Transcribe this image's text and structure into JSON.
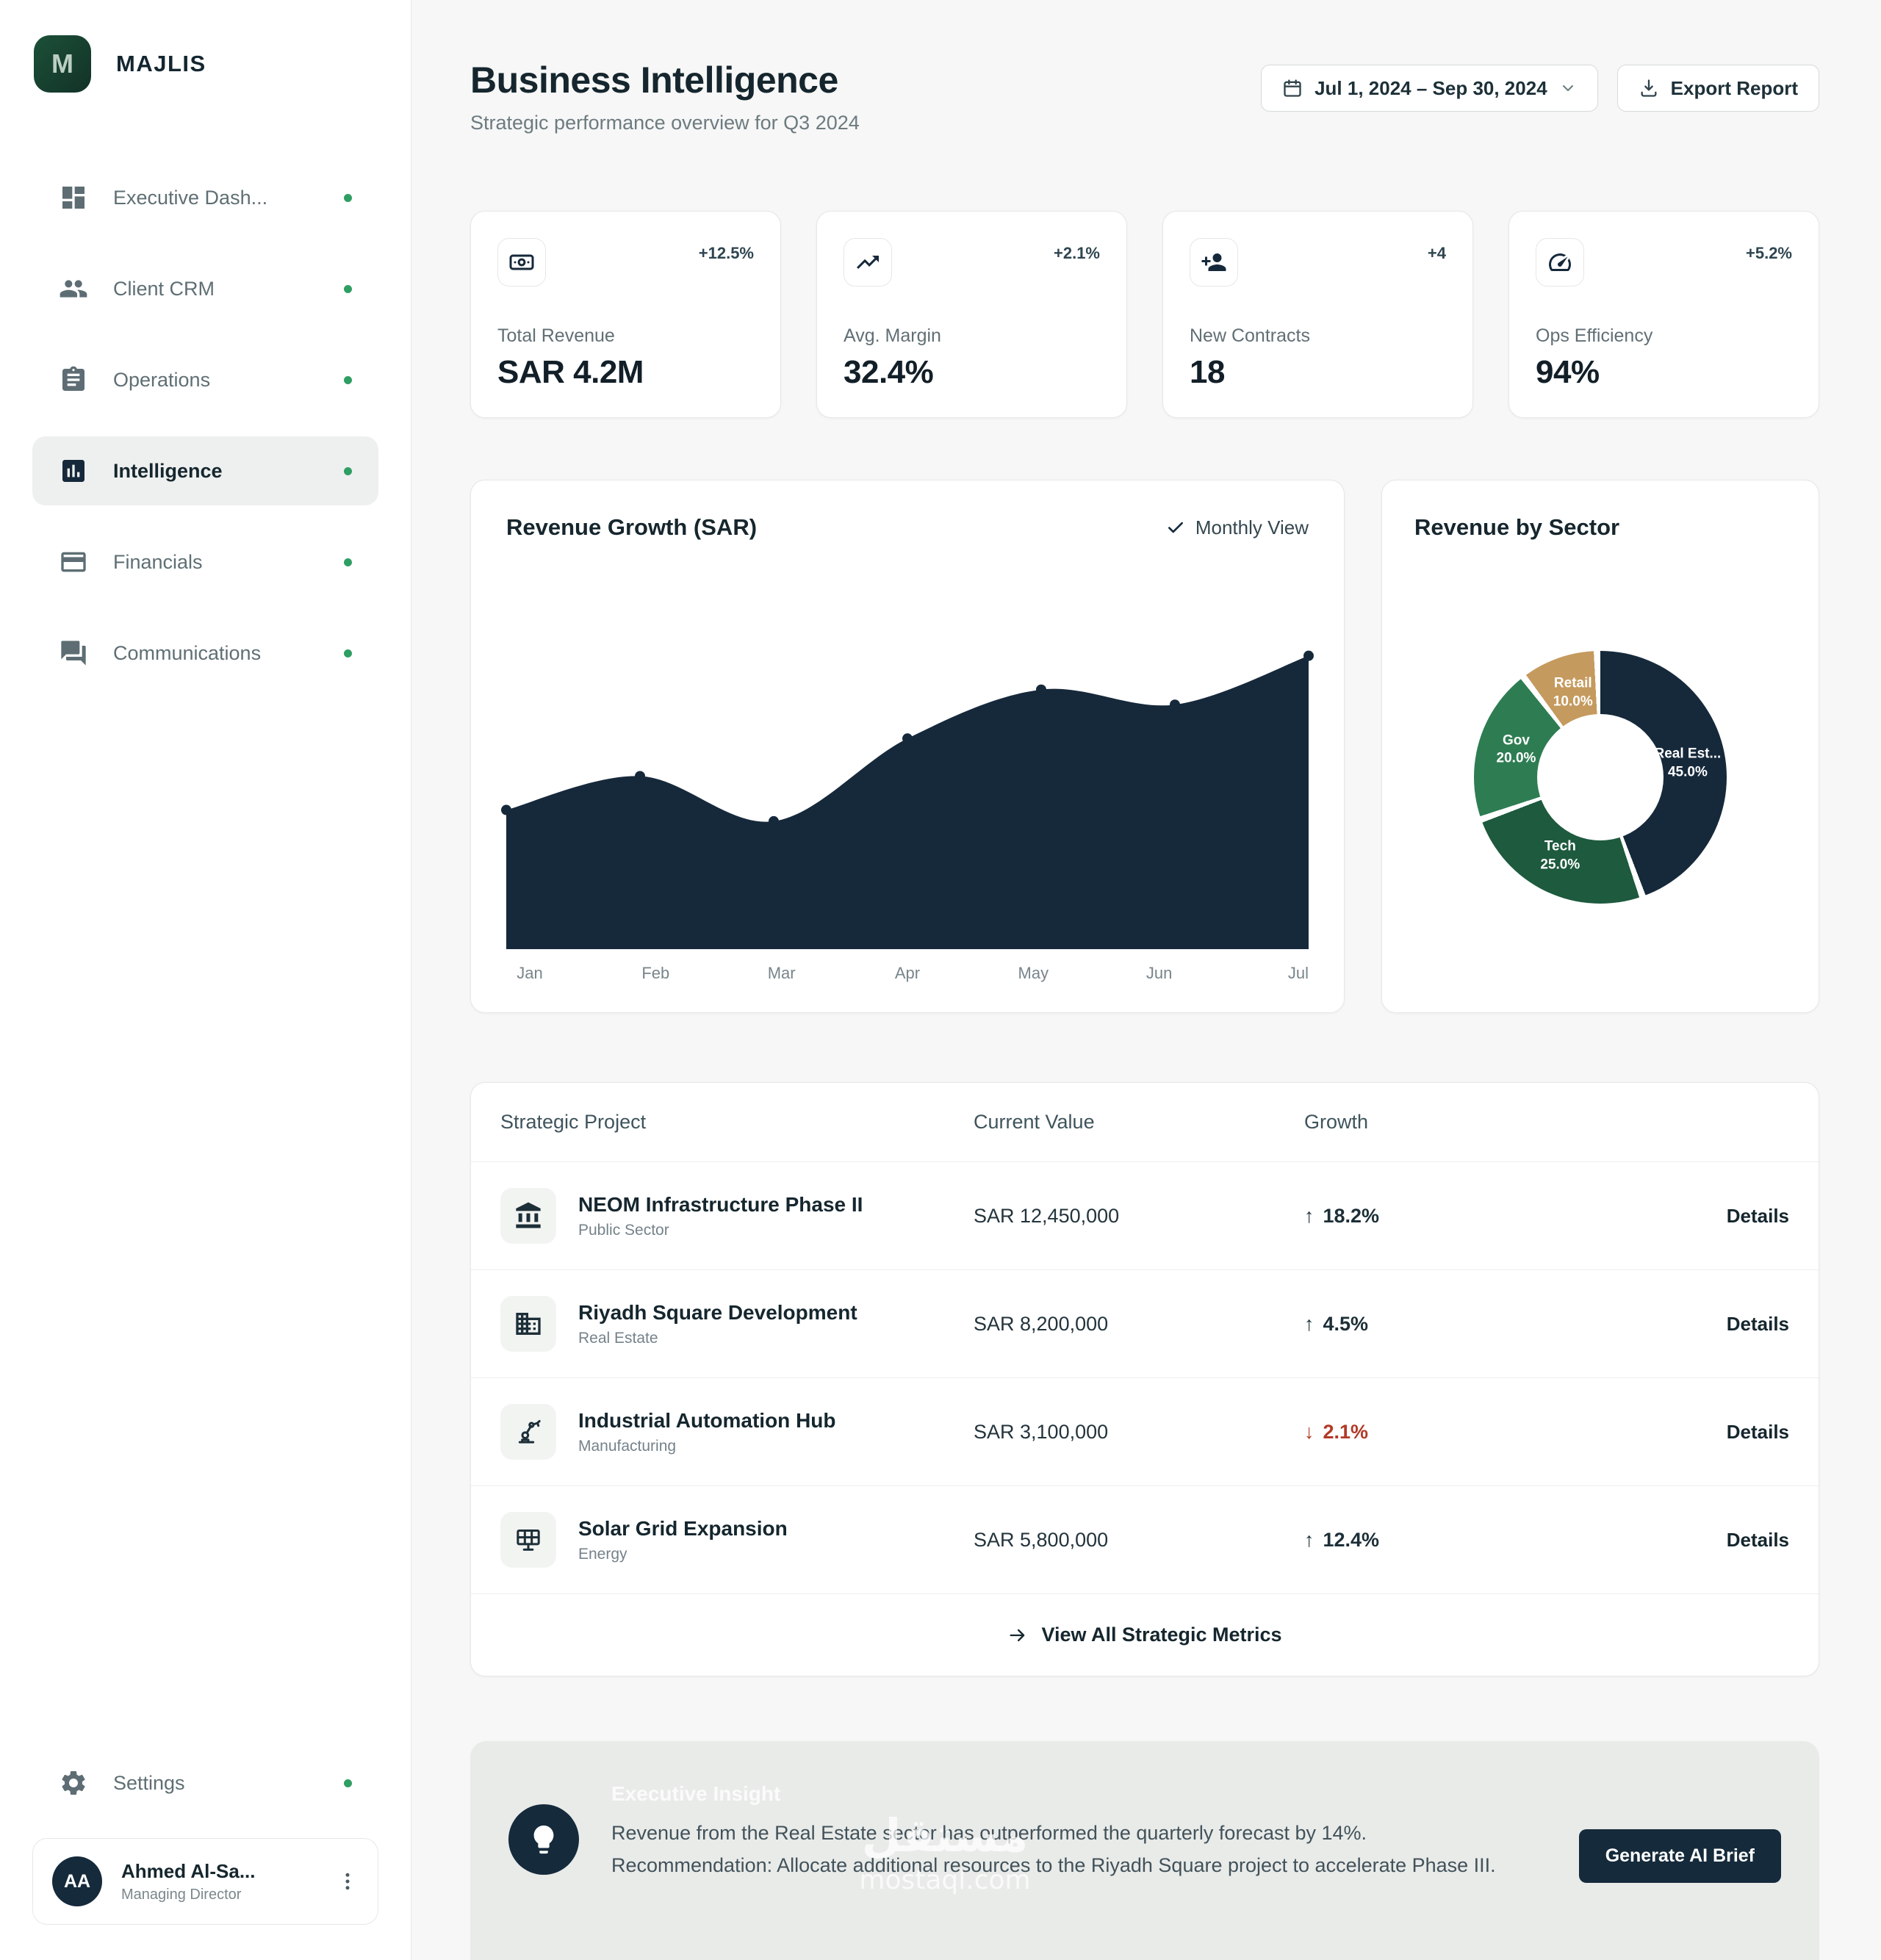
{
  "brand": {
    "name": "MAJLIS",
    "logo_letter": "M"
  },
  "sidebar": {
    "nav": [
      {
        "label": "Executive Dash...",
        "icon": "dashboard",
        "active": false
      },
      {
        "label": "Client CRM",
        "icon": "people",
        "active": false
      },
      {
        "label": "Operations",
        "icon": "clipboard",
        "active": false
      },
      {
        "label": "Intelligence",
        "icon": "analytics",
        "active": true
      },
      {
        "label": "Financials",
        "icon": "card",
        "active": false
      },
      {
        "label": "Communications",
        "icon": "chat",
        "active": false
      }
    ],
    "settings": {
      "label": "Settings",
      "icon": "gear"
    },
    "user": {
      "initials": "AA",
      "name": "Ahmed Al-Sa...",
      "role": "Managing Director"
    }
  },
  "header": {
    "title": "Business Intelligence",
    "subtitle": "Strategic performance overview for Q3 2024",
    "date_range": "Jul 1, 2024 – Sep 30, 2024",
    "export_label": "Export Report"
  },
  "kpis": [
    {
      "label": "Total Revenue",
      "value": "SAR 4.2M",
      "delta": "+12.5%",
      "icon": "banknote"
    },
    {
      "label": "Avg. Margin",
      "value": "32.4%",
      "delta": "+2.1%",
      "icon": "trending-up"
    },
    {
      "label": "New Contracts",
      "value": "18",
      "delta": "+4",
      "icon": "person-add"
    },
    {
      "label": "Ops Efficiency",
      "value": "94%",
      "delta": "+5.2%",
      "icon": "gauge"
    }
  ],
  "chart_data": [
    {
      "type": "area",
      "title": "Revenue Growth (SAR)",
      "view_toggle": "Monthly View",
      "x": [
        "Jan",
        "Feb",
        "Mar",
        "Apr",
        "May",
        "Jun",
        "Jul"
      ],
      "values": [
        37,
        46,
        34,
        56,
        69,
        65,
        78
      ],
      "ylim": [
        0,
        100
      ],
      "color": "#16293b",
      "grid": false,
      "legend": "none"
    },
    {
      "type": "pie",
      "title": "Revenue by Sector",
      "donut": true,
      "slices": [
        {
          "label": "Real Est...",
          "value": 45.0,
          "display": "45.0%",
          "color": "#16293b"
        },
        {
          "label": "Tech",
          "value": 25.0,
          "display": "25.0%",
          "color": "#1d5a3e"
        },
        {
          "label": "Gov",
          "value": 20.0,
          "display": "20.0%",
          "color": "#2e7d52"
        },
        {
          "label": "Retail",
          "value": 10.0,
          "display": "10.0%",
          "color": "#c59a5e"
        }
      ]
    }
  ],
  "table": {
    "columns": [
      "Strategic Project",
      "Current Value",
      "Growth"
    ],
    "details_label": "Details",
    "rows": [
      {
        "icon": "bank",
        "name": "NEOM Infrastructure Phase II",
        "sector": "Public Sector",
        "value": "SAR 12,450,000",
        "growth_arrow": "↑",
        "growth": "18.2%",
        "negative": false
      },
      {
        "icon": "building",
        "name": "Riyadh Square Development",
        "sector": "Real Estate",
        "value": "SAR 8,200,000",
        "growth_arrow": "↑",
        "growth": "4.5%",
        "negative": false
      },
      {
        "icon": "robot-arm",
        "name": "Industrial Automation Hub",
        "sector": "Manufacturing",
        "value": "SAR 3,100,000",
        "growth_arrow": "↓",
        "growth": "2.1%",
        "negative": true
      },
      {
        "icon": "solar-panel",
        "name": "Solar Grid Expansion",
        "sector": "Energy",
        "value": "SAR 5,800,000",
        "growth_arrow": "↑",
        "growth": "12.4%",
        "negative": false
      }
    ],
    "footer_link": "View All Strategic Metrics"
  },
  "insight": {
    "title": "Executive Insight",
    "body": "Revenue from the Real Estate sector has outperformed the quarterly forecast by 14%. Recommendation: Allocate additional resources to the Riyadh Square project to accelerate Phase III.",
    "button_label": "Generate AI Brief"
  },
  "watermark": {
    "arabic": "مستقل",
    "latin": "mostaql.com"
  },
  "colors": {
    "navy": "#16293b",
    "green_dot": "#2f9e63",
    "negative_red": "#b23a27",
    "panel_gray": "#e9ebe9"
  }
}
